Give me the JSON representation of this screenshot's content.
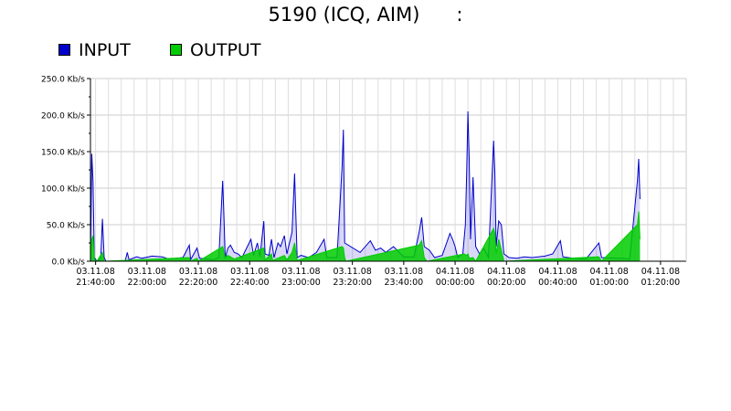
{
  "chart_data": {
    "type": "area",
    "title": "5190 (ICQ, AIM)",
    "title_suffix": ":",
    "ylim": [
      0,
      250
    ],
    "y_ticks": [
      "0.0 Kb/s",
      "50.0 Kb/s",
      "100.0 Kb/s",
      "150.0 Kb/s",
      "200.0 Kb/s",
      "250.0 Kb/s"
    ],
    "y_tick_values": [
      0,
      50,
      100,
      150,
      200,
      250
    ],
    "x_time_range": [
      "2008-11-03 21:38:00",
      "2008-11-04 01:30:00"
    ],
    "x_ticks": [
      {
        "date": "03.11.08",
        "time": "21:40:00"
      },
      {
        "date": "03.11.08",
        "time": "22:00:00"
      },
      {
        "date": "03.11.08",
        "time": "22:20:00"
      },
      {
        "date": "03.11.08",
        "time": "22:40:00"
      },
      {
        "date": "03.11.08",
        "time": "23:00:00"
      },
      {
        "date": "03.11.08",
        "time": "23:20:00"
      },
      {
        "date": "03.11.08",
        "time": "23:40:00"
      },
      {
        "date": "04.11.08",
        "time": "00:00:00"
      },
      {
        "date": "04.11.08",
        "time": "00:20:00"
      },
      {
        "date": "04.11.08",
        "time": "00:40:00"
      },
      {
        "date": "04.11.08",
        "time": "01:00:00"
      },
      {
        "date": "04.11.08",
        "time": "01:20:00"
      }
    ],
    "grid": true,
    "legend_position": "top-left",
    "series": [
      {
        "name": "INPUT",
        "color": "#0000cc",
        "points": [
          [
            "21:38:00",
            0
          ],
          [
            "21:38:30",
            147
          ],
          [
            "21:39:00",
            110
          ],
          [
            "21:39:30",
            5
          ],
          [
            "21:40:30",
            0
          ],
          [
            "21:42:00",
            3
          ],
          [
            "21:42:40",
            58
          ],
          [
            "21:43:20",
            5
          ],
          [
            "21:44:00",
            0
          ],
          [
            "21:51:30",
            0
          ],
          [
            "21:52:20",
            12
          ],
          [
            "21:53:00",
            2
          ],
          [
            "21:56:00",
            6
          ],
          [
            "21:58:00",
            4
          ],
          [
            "22:02:00",
            7
          ],
          [
            "22:06:00",
            6
          ],
          [
            "22:08:30",
            3
          ],
          [
            "22:14:00",
            5
          ],
          [
            "22:16:30",
            22
          ],
          [
            "22:17:00",
            2
          ],
          [
            "22:19:30",
            18
          ],
          [
            "22:20:30",
            4
          ],
          [
            "22:26:00",
            2
          ],
          [
            "22:28:00",
            5
          ],
          [
            "22:29:30",
            110
          ],
          [
            "22:30:00",
            60
          ],
          [
            "22:30:30",
            4
          ],
          [
            "22:31:30",
            18
          ],
          [
            "22:32:30",
            22
          ],
          [
            "22:34:00",
            12
          ],
          [
            "22:35:30",
            10
          ],
          [
            "22:37:00",
            5
          ],
          [
            "22:40:30",
            30
          ],
          [
            "22:41:30",
            8
          ],
          [
            "22:43:00",
            25
          ],
          [
            "22:44:00",
            6
          ],
          [
            "22:45:30",
            55
          ],
          [
            "22:46:00",
            10
          ],
          [
            "22:47:30",
            8
          ],
          [
            "22:48:30",
            30
          ],
          [
            "22:49:30",
            5
          ],
          [
            "22:51:00",
            25
          ],
          [
            "22:52:00",
            20
          ],
          [
            "22:53:30",
            35
          ],
          [
            "22:54:30",
            10
          ],
          [
            "22:55:30",
            25
          ],
          [
            "22:56:30",
            40
          ],
          [
            "22:57:30",
            120
          ],
          [
            "22:58:30",
            5
          ],
          [
            "23:00:00",
            8
          ],
          [
            "23:03:00",
            5
          ],
          [
            "23:06:00",
            12
          ],
          [
            "23:09:00",
            30
          ],
          [
            "23:10:00",
            5
          ],
          [
            "23:14:00",
            5
          ],
          [
            "23:16:00",
            130
          ],
          [
            "23:16:30",
            180
          ],
          [
            "23:17:00",
            25
          ],
          [
            "23:23:00",
            12
          ],
          [
            "23:27:00",
            28
          ],
          [
            "23:29:00",
            15
          ],
          [
            "23:31:00",
            18
          ],
          [
            "23:33:00",
            12
          ],
          [
            "23:36:00",
            20
          ],
          [
            "23:40:00",
            6
          ],
          [
            "23:44:00",
            6
          ],
          [
            "23:46:00",
            40
          ],
          [
            "23:47:00",
            60
          ],
          [
            "23:48:00",
            20
          ],
          [
            "23:50:00",
            15
          ],
          [
            "23:52:00",
            5
          ],
          [
            "23:55:00",
            8
          ],
          [
            "23:58:00",
            38
          ],
          [
            "23:59:00",
            30
          ],
          [
            "00:00:00",
            20
          ],
          [
            "00:01:00",
            5
          ],
          [
            "00:03:00",
            10
          ],
          [
            "00:04:00",
            50
          ],
          [
            "00:04:30",
            120
          ],
          [
            "00:05:00",
            205
          ],
          [
            "00:05:30",
            140
          ],
          [
            "00:06:00",
            30
          ],
          [
            "00:07:00",
            115
          ],
          [
            "00:08:00",
            20
          ],
          [
            "00:09:30",
            10
          ],
          [
            "00:11:00",
            18
          ],
          [
            "00:12:00",
            12
          ],
          [
            "00:13:00",
            5
          ],
          [
            "00:15:00",
            165
          ],
          [
            "00:15:30",
            120
          ],
          [
            "00:16:00",
            20
          ],
          [
            "00:17:00",
            55
          ],
          [
            "00:18:00",
            50
          ],
          [
            "00:19:00",
            10
          ],
          [
            "00:21:00",
            5
          ],
          [
            "00:24:00",
            4
          ],
          [
            "00:27:00",
            6
          ],
          [
            "00:30:00",
            5
          ],
          [
            "00:35:00",
            7
          ],
          [
            "00:38:00",
            10
          ],
          [
            "00:41:00",
            28
          ],
          [
            "00:42:00",
            6
          ],
          [
            "00:46:00",
            4
          ],
          [
            "00:51:00",
            3
          ],
          [
            "00:56:00",
            25
          ],
          [
            "00:57:00",
            5
          ],
          [
            "01:03:00",
            4
          ],
          [
            "01:05:00",
            4
          ],
          [
            "01:08:00",
            3
          ],
          [
            "01:11:00",
            110
          ],
          [
            "01:11:30",
            140
          ],
          [
            "01:12:00",
            85
          ]
        ]
      },
      {
        "name": "OUTPUT",
        "color": "#00cc00",
        "points": [
          [
            "21:38:00",
            0
          ],
          [
            "21:38:30",
            30
          ],
          [
            "21:39:00",
            35
          ],
          [
            "21:39:30",
            2
          ],
          [
            "21:40:30",
            0
          ],
          [
            "21:42:40",
            12
          ],
          [
            "21:43:20",
            0
          ],
          [
            "22:16:30",
            5
          ],
          [
            "22:17:00",
            0
          ],
          [
            "22:19:30",
            4
          ],
          [
            "22:20:00",
            0
          ],
          [
            "22:29:30",
            20
          ],
          [
            "22:30:30",
            5
          ],
          [
            "22:31:30",
            8
          ],
          [
            "22:32:30",
            6
          ],
          [
            "22:34:00",
            3
          ],
          [
            "22:45:30",
            18
          ],
          [
            "22:46:00",
            2
          ],
          [
            "22:48:30",
            10
          ],
          [
            "22:49:00",
            1
          ],
          [
            "22:53:30",
            8
          ],
          [
            "22:54:30",
            2
          ],
          [
            "22:56:30",
            12
          ],
          [
            "22:57:30",
            25
          ],
          [
            "22:58:30",
            1
          ],
          [
            "23:16:00",
            20
          ],
          [
            "23:16:30",
            18
          ],
          [
            "23:17:00",
            5
          ],
          [
            "23:17:30",
            0
          ],
          [
            "23:46:00",
            22
          ],
          [
            "23:47:00",
            28
          ],
          [
            "23:48:00",
            5
          ],
          [
            "23:49:00",
            0
          ],
          [
            "00:03:30",
            10
          ],
          [
            "00:04:30",
            8
          ],
          [
            "00:05:00",
            10
          ],
          [
            "00:05:30",
            4
          ],
          [
            "00:07:00",
            5
          ],
          [
            "00:08:00",
            0
          ],
          [
            "00:15:00",
            45
          ],
          [
            "00:15:30",
            38
          ],
          [
            "00:16:00",
            10
          ],
          [
            "00:17:00",
            30
          ],
          [
            "00:18:00",
            15
          ],
          [
            "00:19:00",
            0
          ],
          [
            "00:56:00",
            6
          ],
          [
            "00:57:00",
            0
          ],
          [
            "01:11:00",
            50
          ],
          [
            "01:11:30",
            68
          ],
          [
            "01:12:00",
            30
          ]
        ]
      }
    ]
  }
}
